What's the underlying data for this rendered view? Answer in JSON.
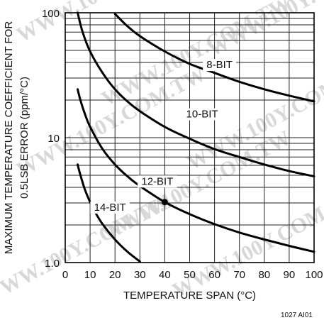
{
  "chart_data": {
    "type": "line",
    "xlabel": "TEMPERATURE SPAN (°C)",
    "ylabel_lines": [
      "MAXIMUM TEMPERATURE COEFFICIENT FOR",
      "0.5LSB ERROR (ppm/°C)"
    ],
    "xlim": [
      0,
      100
    ],
    "ylim": [
      1.0,
      100
    ],
    "yscale": "log",
    "grid": true,
    "x_ticks": [
      0,
      10,
      20,
      30,
      40,
      50,
      60,
      70,
      80,
      90,
      100
    ],
    "x_tick_labels": [
      "0",
      "10",
      "20",
      "30",
      "40",
      "50",
      "60",
      "70",
      "80",
      "90",
      "100"
    ],
    "y_tick_labels": [
      {
        "value": 1.0,
        "label": "1.0"
      },
      {
        "value": 10,
        "label": "10"
      },
      {
        "value": 100,
        "label": "100"
      }
    ],
    "series": [
      {
        "name": "8-BIT",
        "x": [
          20,
          25,
          30,
          40,
          50,
          60,
          70,
          80,
          90,
          100
        ],
        "y": [
          98,
          78,
          65,
          49,
          39,
          33,
          28,
          24.4,
          21.7,
          19.5
        ]
      },
      {
        "name": "10-BIT",
        "x": [
          5,
          7,
          10,
          15,
          20,
          25,
          30,
          40,
          50,
          60,
          70,
          80,
          90,
          100
        ],
        "y": [
          100,
          70,
          49,
          33,
          24.4,
          19.5,
          16.3,
          12.2,
          9.8,
          8.1,
          7.0,
          6.1,
          5.4,
          4.9
        ]
      },
      {
        "name": "12-BIT",
        "x": [
          5,
          6,
          8,
          10,
          15,
          20,
          25,
          30,
          40,
          50,
          60,
          70,
          80,
          90,
          100
        ],
        "y": [
          24.4,
          20.3,
          15.3,
          12.2,
          8.1,
          6.1,
          4.9,
          4.1,
          3.05,
          2.44,
          2.03,
          1.74,
          1.53,
          1.36,
          1.22
        ]
      },
      {
        "name": "14-BIT",
        "x": [
          5,
          6,
          8,
          10,
          12,
          15,
          20,
          25,
          30
        ],
        "y": [
          6.1,
          5.1,
          3.8,
          3.05,
          2.54,
          2.03,
          1.53,
          1.22,
          1.02
        ]
      }
    ],
    "annotations": [
      {
        "type": "point",
        "series": "12-BIT",
        "x": 40,
        "y": 3.05
      }
    ],
    "figure_id": "1027 AI01"
  },
  "watermark": {
    "text": "WWW.100Y.COM.TW"
  }
}
